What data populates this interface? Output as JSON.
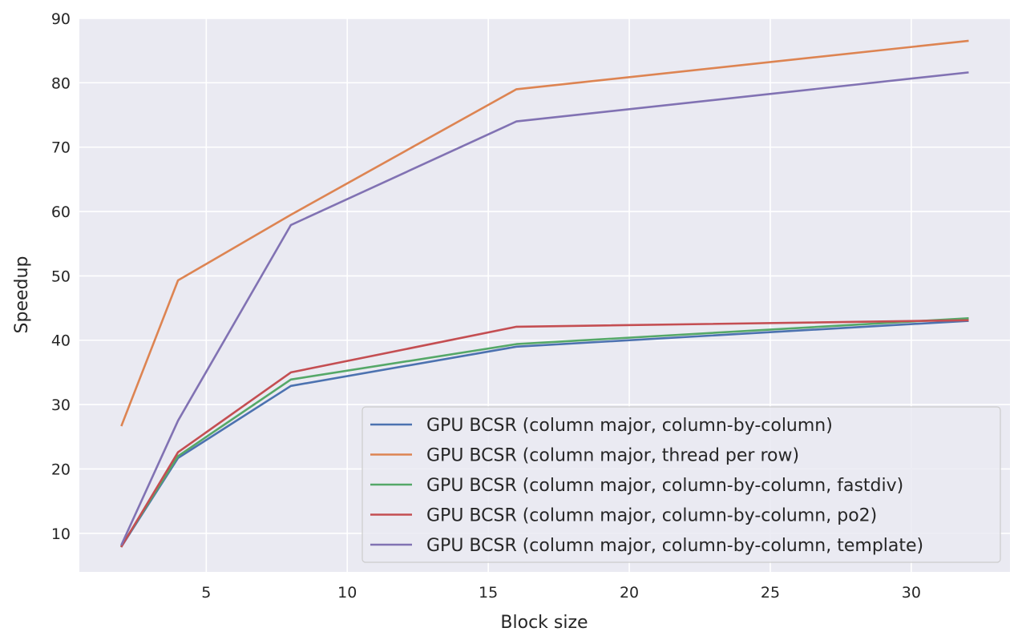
{
  "chart_data": {
    "type": "line",
    "title": "",
    "xlabel": "Block size",
    "ylabel": "Speedup",
    "xlim": [
      0.5,
      33.5
    ],
    "ylim": [
      4,
      90
    ],
    "xticks": [
      5,
      10,
      15,
      20,
      25,
      30
    ],
    "yticks": [
      10,
      20,
      30,
      40,
      50,
      60,
      70,
      80,
      90
    ],
    "grid": true,
    "legend_position": "bottom-right",
    "background": "#eaeaf2",
    "x": [
      2,
      4,
      8,
      16,
      32
    ],
    "series": [
      {
        "name": "GPU BCSR (column major, column-by-column)",
        "color": "#4c72b0",
        "values": [
          8.0,
          21.7,
          32.9,
          39.0,
          43.0
        ]
      },
      {
        "name": "GPU BCSR (column major, thread per row)",
        "color": "#dd8452",
        "values": [
          26.8,
          49.3,
          59.5,
          79.0,
          86.5
        ]
      },
      {
        "name": "GPU BCSR (column major, column-by-column, fastdiv)",
        "color": "#55a868",
        "values": [
          8.1,
          22.0,
          33.9,
          39.4,
          43.4
        ]
      },
      {
        "name": "GPU BCSR (column major, column-by-column, po2)",
        "color": "#c44e52",
        "values": [
          8.0,
          22.6,
          35.0,
          42.1,
          43.1
        ]
      },
      {
        "name": "GPU BCSR (column major, column-by-column, template)",
        "color": "#8172b3",
        "values": [
          8.3,
          27.5,
          57.9,
          74.0,
          81.6
        ]
      }
    ]
  }
}
